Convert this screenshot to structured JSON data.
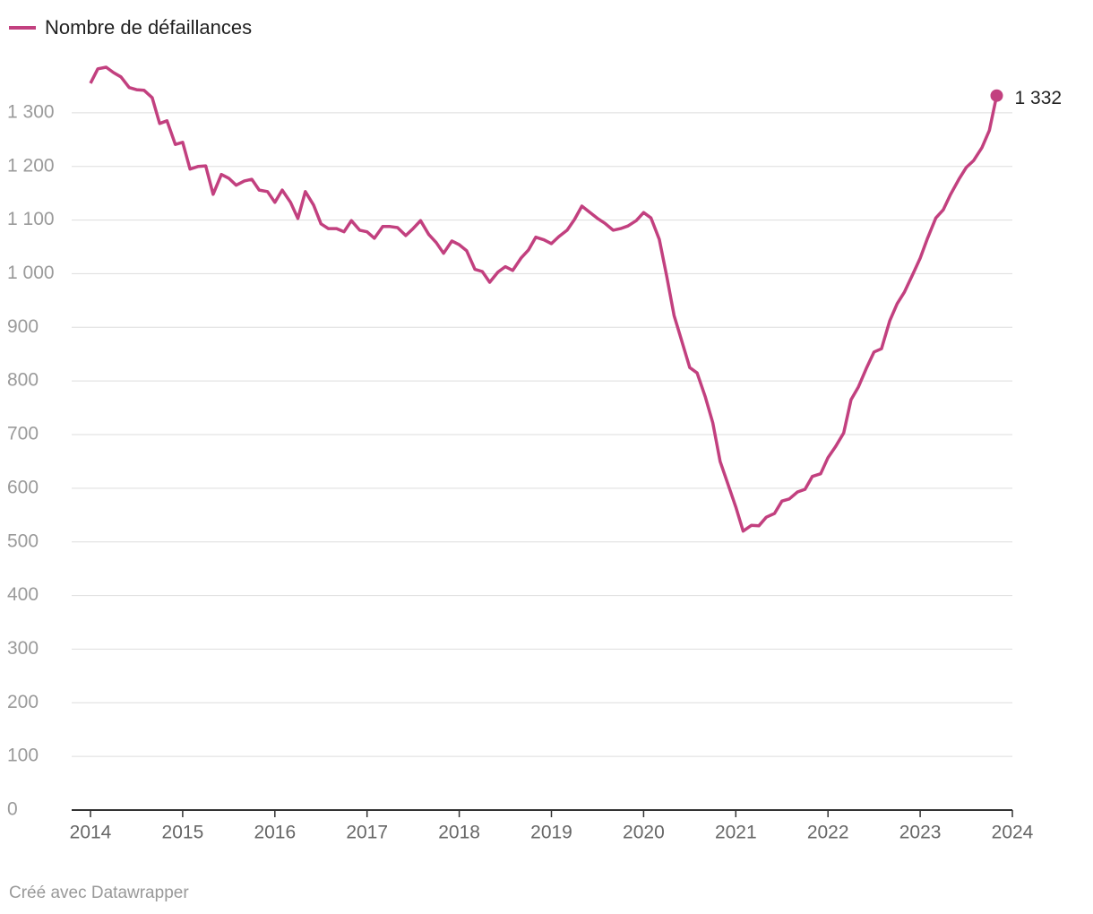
{
  "chart_data": {
    "type": "line",
    "series": [
      {
        "name": "Nombre de défaillances",
        "color": "#c2407f",
        "values": [
          1355,
          1382,
          1385,
          1375,
          1367,
          1347,
          1343,
          1342,
          1328,
          1280,
          1285,
          1241,
          1245,
          1195,
          1200,
          1201,
          1148,
          1185,
          1178,
          1165,
          1173,
          1176,
          1156,
          1153,
          1133,
          1156,
          1133,
          1103,
          1153,
          1128,
          1093,
          1084,
          1084,
          1078,
          1099,
          1081,
          1078,
          1066,
          1088,
          1088,
          1086,
          1071,
          1084,
          1099,
          1073,
          1058,
          1038,
          1061,
          1054,
          1043,
          1008,
          1004,
          984,
          1003,
          1013,
          1006,
          1029,
          1044,
          1068,
          1063,
          1056,
          1069,
          1081,
          1101,
          1126,
          1114,
          1103,
          1094,
          1081,
          1084,
          1089,
          1099,
          1114,
          1104,
          1064,
          996,
          922,
          871,
          825,
          815,
          770,
          722,
          650,
          605,
          565,
          520,
          531,
          530,
          546,
          553,
          576,
          580,
          593,
          598,
          622,
          627,
          657,
          677,
          703,
          765,
          789,
          825,
          854,
          860,
          912,
          944,
          966,
          999,
          1029,
          1066,
          1104,
          1119,
          1148,
          1176,
          1198,
          1211,
          1235,
          1267,
          1332
        ],
        "value_labels": [
          null,
          null,
          null,
          null,
          null,
          null,
          null,
          null,
          null,
          null,
          null,
          null,
          null,
          null,
          null,
          null,
          null,
          null,
          null,
          null,
          null,
          null,
          null,
          null,
          null,
          null,
          null,
          null,
          null,
          null,
          null,
          null,
          null,
          null,
          null,
          null,
          null,
          null,
          null,
          null,
          null,
          null,
          null,
          null,
          null,
          null,
          null,
          null,
          null,
          null,
          null,
          null,
          null,
          null,
          null,
          null,
          null,
          null,
          null,
          null,
          null,
          null,
          null,
          null,
          null,
          null,
          null,
          null,
          null,
          null,
          null,
          null,
          null,
          null,
          null,
          null,
          null,
          null,
          null,
          null,
          null,
          null,
          null,
          null,
          null,
          null,
          null,
          null,
          null,
          null,
          null,
          null,
          null,
          null,
          null,
          null,
          null,
          null,
          null,
          null,
          null,
          null,
          null,
          null,
          null,
          null,
          null,
          null,
          null,
          null,
          null,
          null,
          null,
          null,
          null,
          null,
          null,
          null,
          "1 332"
        ]
      }
    ],
    "x": [
      2014,
      2014.08,
      2014.17,
      2014.25,
      2014.33,
      2014.42,
      2014.5,
      2014.58,
      2014.67,
      2014.75,
      2014.83,
      2014.92,
      2015,
      2015.08,
      2015.17,
      2015.25,
      2015.33,
      2015.42,
      2015.5,
      2015.58,
      2015.67,
      2015.75,
      2015.83,
      2015.92,
      2016,
      2016.08,
      2016.17,
      2016.25,
      2016.33,
      2016.42,
      2016.5,
      2016.58,
      2016.67,
      2016.75,
      2016.83,
      2016.92,
      2017,
      2017.08,
      2017.17,
      2017.25,
      2017.33,
      2017.42,
      2017.5,
      2017.58,
      2017.67,
      2017.75,
      2017.83,
      2017.92,
      2018,
      2018.08,
      2018.17,
      2018.25,
      2018.33,
      2018.42,
      2018.5,
      2018.58,
      2018.67,
      2018.75,
      2018.83,
      2018.92,
      2019,
      2019.08,
      2019.17,
      2019.25,
      2019.33,
      2019.42,
      2019.5,
      2019.58,
      2019.67,
      2019.75,
      2019.83,
      2019.92,
      2020,
      2020.08,
      2020.17,
      2020.25,
      2020.33,
      2020.42,
      2020.5,
      2020.58,
      2020.67,
      2020.75,
      2020.83,
      2020.92,
      2021,
      2021.08,
      2021.17,
      2021.25,
      2021.33,
      2021.42,
      2021.5,
      2021.58,
      2021.67,
      2021.75,
      2021.83,
      2021.92,
      2022,
      2022.08,
      2022.17,
      2022.25,
      2022.33,
      2022.42,
      2022.5,
      2022.58,
      2022.67,
      2022.75,
      2022.83,
      2022.92,
      2023,
      2023.08,
      2023.17,
      2023.25,
      2023.33,
      2023.42,
      2023.5,
      2023.58,
      2023.67,
      2023.75,
      2023.83
    ],
    "xlim": [
      2014,
      2024
    ],
    "xticks": [
      2014,
      2015,
      2016,
      2017,
      2018,
      2019,
      2020,
      2021,
      2022,
      2023,
      2024
    ],
    "ylim": [
      0,
      1400
    ],
    "yticks": [
      0,
      100,
      200,
      300,
      400,
      500,
      600,
      700,
      800,
      900,
      {
        "value": 1000,
        "label": "1 000"
      },
      {
        "value": 1100,
        "label": "1 100"
      },
      {
        "value": 1200,
        "label": "1 200"
      },
      {
        "value": 1300,
        "label": "1 300"
      }
    ],
    "grid": true,
    "legend": "top-left",
    "source": "Créé avec Datawrapper"
  }
}
